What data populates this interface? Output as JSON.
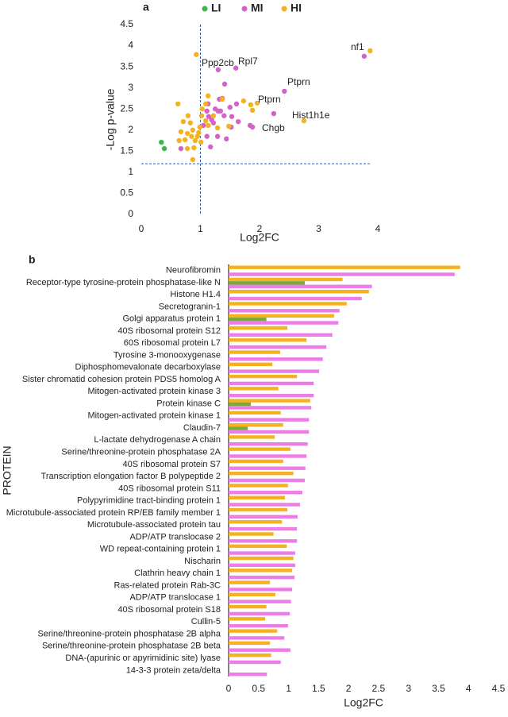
{
  "chart_data": [
    {
      "type": "scatter",
      "panel": "a",
      "xlabel": "Log2FC",
      "ylabel": "-Log p-value",
      "xlim": [
        0,
        4
      ],
      "ylim": [
        0,
        4.5
      ],
      "xticks": [
        0,
        1,
        2,
        3,
        4
      ],
      "yticks": [
        0,
        0.5,
        1,
        1.5,
        2,
        2.5,
        3,
        3.5,
        4,
        4.5
      ],
      "vline": 1,
      "hline": 1.2,
      "reference_color": "#2f5fb0",
      "series": [
        {
          "name": "LI",
          "color": "#3cb54a",
          "x": [
            0.34,
            0.39
          ],
          "y": [
            1.71,
            1.56
          ]
        },
        {
          "name": "MI",
          "color": "#d462c8",
          "x": [
            3.77,
            2.42,
            2.24,
            1.3,
            1.6,
            1.41,
            1.37,
            1.32,
            1.13,
            1.11,
            1.25,
            1.19,
            1.5,
            1.53,
            1.34,
            1.88,
            1.84,
            1.22,
            1.14,
            1.05,
            1.11,
            1.29,
            1.52,
            1.4,
            0.67,
            1.17,
            1.44,
            1.61,
            1.64,
            1.3
          ],
          "y": [
            3.75,
            2.92,
            2.39,
            3.43,
            3.47,
            3.09,
            2.75,
            2.73,
            2.62,
            2.45,
            2.5,
            2.24,
            2.54,
            2.32,
            2.45,
            2.07,
            2.11,
            2.17,
            2.32,
            2.11,
            1.85,
            1.85,
            2.07,
            2.34,
            1.56,
            1.6,
            1.79,
            2.62,
            2.2,
            2.45
          ]
        },
        {
          "name": "HI",
          "color": "#f4b120",
          "x": [
            3.87,
            0.93,
            2.75,
            1.96,
            1.88,
            1.85,
            0.62,
            1.13,
            1.09,
            1.03,
            1.02,
            1.13,
            0.79,
            0.71,
            0.83,
            0.67,
            0.78,
            0.85,
            0.91,
            0.74,
            0.97,
            0.89,
            0.95,
            0.87,
            0.99,
            1.48,
            1.29,
            1.73,
            1.22,
            1.09,
            0.87,
            0.64,
            1.37,
            0.78,
            1.01
          ],
          "y": [
            3.88,
            3.79,
            2.22,
            2.64,
            2.47,
            2.6,
            2.62,
            2.81,
            2.62,
            2.5,
            2.34,
            2.11,
            2.34,
            2.2,
            2.17,
            1.96,
            1.92,
            1.85,
            1.75,
            1.77,
            1.94,
            1.58,
            1.85,
            1.3,
            2.07,
            2.09,
            2.05,
            2.69,
            2.34,
            2.22,
            2.0,
            1.75,
            2.73,
            1.56,
            1.71
          ]
        }
      ],
      "annotations": [
        "nf1",
        "Ppp2cb",
        "Rpl7",
        "Ptprn",
        "Ptprn",
        "Hist1h1e",
        "Chgb"
      ]
    },
    {
      "type": "hbar",
      "panel": "b",
      "xlabel": "Log2FC",
      "ylabel": "PROTEIN",
      "xlim": [
        0,
        4.5
      ],
      "xticks": [
        0,
        0.5,
        1,
        1.5,
        2,
        2.5,
        3,
        3.5,
        4,
        4.5
      ],
      "categories": [
        "Neurofibromin",
        "Receptor-type tyrosine-protein phosphatase-like N",
        "Histone H1.4",
        "Secretogranin-1",
        "Golgi apparatus protein 1",
        "40S ribosomal protein S12",
        "60S ribosomal protein L7",
        "Tyrosine 3-monooxygenase",
        "Diphosphomevalonate decarboxylase",
        "Sister chromatid cohesion protein PDS5 homolog A",
        "Mitogen-activated protein kinase 3",
        "Protein kinase C",
        "Mitogen-activated protein kinase 1",
        "Claudin-7",
        "L-lactate dehydrogenase A chain",
        "Serine/threonine-protein phosphatase 2A",
        "40S ribosomal protein S7",
        "Transcription elongation factor B polypeptide 2",
        "40S ribosomal protein S11",
        "Polypyrimidine tract-binding protein 1",
        "Microtubule-associated protein RP/EB family member 1",
        "Microtubule-associated protein tau",
        "ADP/ATP translocase 2",
        "WD repeat-containing protein 1",
        "Nischarin",
        "Clathrin heavy chain 1",
        "Ras-related protein Rab-3C",
        "ADP/ATP translocase 1",
        "40S ribosomal protein S18",
        "Cullin-5",
        "Serine/threonine-protein phosphatase 2B alpha",
        "Serine/threonine-protein phosphatase 2B beta",
        "DNA-(apurinic or apyrimidinic site) lyase",
        "14-3-3 protein zeta/delta"
      ],
      "series": [
        {
          "color": "#f4b120",
          "values": [
            3.86,
            1.9,
            2.34,
            1.97,
            1.76,
            0.98,
            1.3,
            0.86,
            0.73,
            1.14,
            0.83,
            1.36,
            0.87,
            0.91,
            0.77,
            1.03,
            0.91,
            1.08,
            0.99,
            0.94,
            0.98,
            0.89,
            0.75,
            0.97,
            1.08,
            1.06,
            0.69,
            0.78,
            0.63,
            0.61,
            0.81,
            0.69,
            0.71,
            null
          ]
        },
        {
          "color": "#7ca83a",
          "values": [
            null,
            1.27,
            null,
            null,
            0.63,
            null,
            null,
            null,
            null,
            null,
            null,
            0.37,
            null,
            0.32,
            null,
            null,
            null,
            null,
            null,
            null,
            null,
            null,
            null,
            null,
            null,
            null,
            null,
            null,
            null,
            null,
            null,
            null,
            null,
            null
          ]
        },
        {
          "color": "#ec7ce6",
          "values": [
            3.77,
            2.39,
            2.22,
            1.85,
            1.83,
            1.73,
            1.63,
            1.57,
            1.51,
            1.42,
            1.42,
            1.38,
            1.34,
            1.34,
            1.32,
            1.3,
            1.28,
            1.27,
            1.23,
            1.19,
            1.15,
            1.14,
            1.14,
            1.11,
            1.11,
            1.1,
            1.06,
            1.04,
            1.02,
            0.99,
            0.93,
            1.03,
            0.87,
            0.64
          ]
        }
      ]
    }
  ]
}
